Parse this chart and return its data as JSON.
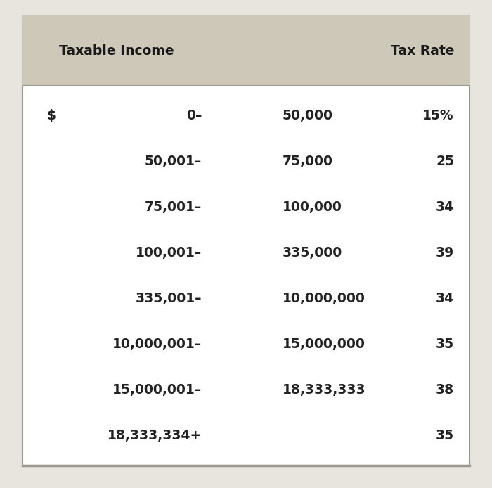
{
  "header_bg": "#cdc8b8",
  "table_bg": "#ffffff",
  "outer_bg": "#e8e5de",
  "border_color": "#999990",
  "header_col1": "Taxable Income",
  "header_col2": "Tax Rate",
  "rows": [
    {
      "col1_prefix": "$",
      "col1_from": "0–",
      "col1_to": "50,000",
      "col2": "15%"
    },
    {
      "col1_prefix": "",
      "col1_from": "50,001–",
      "col1_to": "75,000",
      "col2": "25"
    },
    {
      "col1_prefix": "",
      "col1_from": "75,001–",
      "col1_to": "100,000",
      "col2": "34"
    },
    {
      "col1_prefix": "",
      "col1_from": "100,001–",
      "col1_to": "335,000",
      "col2": "39"
    },
    {
      "col1_prefix": "",
      "col1_from": "335,001–",
      "col1_to": "10,000,000",
      "col2": "34"
    },
    {
      "col1_prefix": "",
      "col1_from": "10,000,001–",
      "col1_to": "15,000,000",
      "col2": "35"
    },
    {
      "col1_prefix": "",
      "col1_from": "15,000,001–",
      "col1_to": "18,333,333",
      "col2": "38"
    },
    {
      "col1_prefix": "",
      "col1_from": "18,333,334+",
      "col1_to": "",
      "col2": "35"
    }
  ],
  "fig_width": 7.0,
  "fig_height": 6.94,
  "dpi": 100,
  "header_fontsize": 13.5,
  "row_fontsize": 13.5,
  "header_text_color": "#1a1a1a",
  "row_text_color": "#222222",
  "font_weight_header": "bold",
  "font_weight_row": "bold"
}
